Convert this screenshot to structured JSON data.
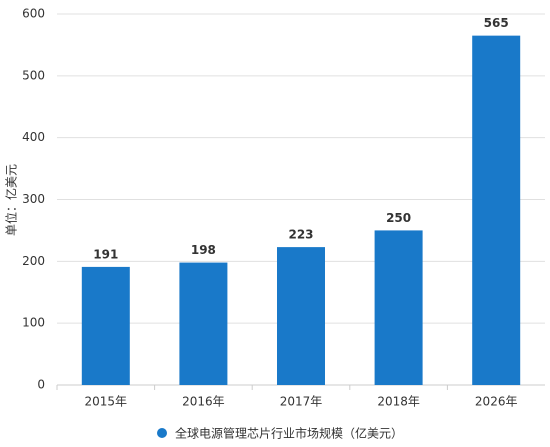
{
  "chart_data": {
    "type": "bar",
    "y_label": "单位：亿美元",
    "categories": [
      "2015年",
      "2016年",
      "2017年",
      "2018年",
      "2026年"
    ],
    "series": [
      {
        "name": "全球电源管理芯片行业市场规模（亿美元）",
        "color": "#1979c9",
        "values": [
          191,
          198,
          223,
          250,
          565
        ]
      }
    ],
    "ylim": [
      0,
      600
    ],
    "yticks": [
      0,
      100,
      200,
      300,
      400,
      500,
      600
    ],
    "grid": true
  }
}
